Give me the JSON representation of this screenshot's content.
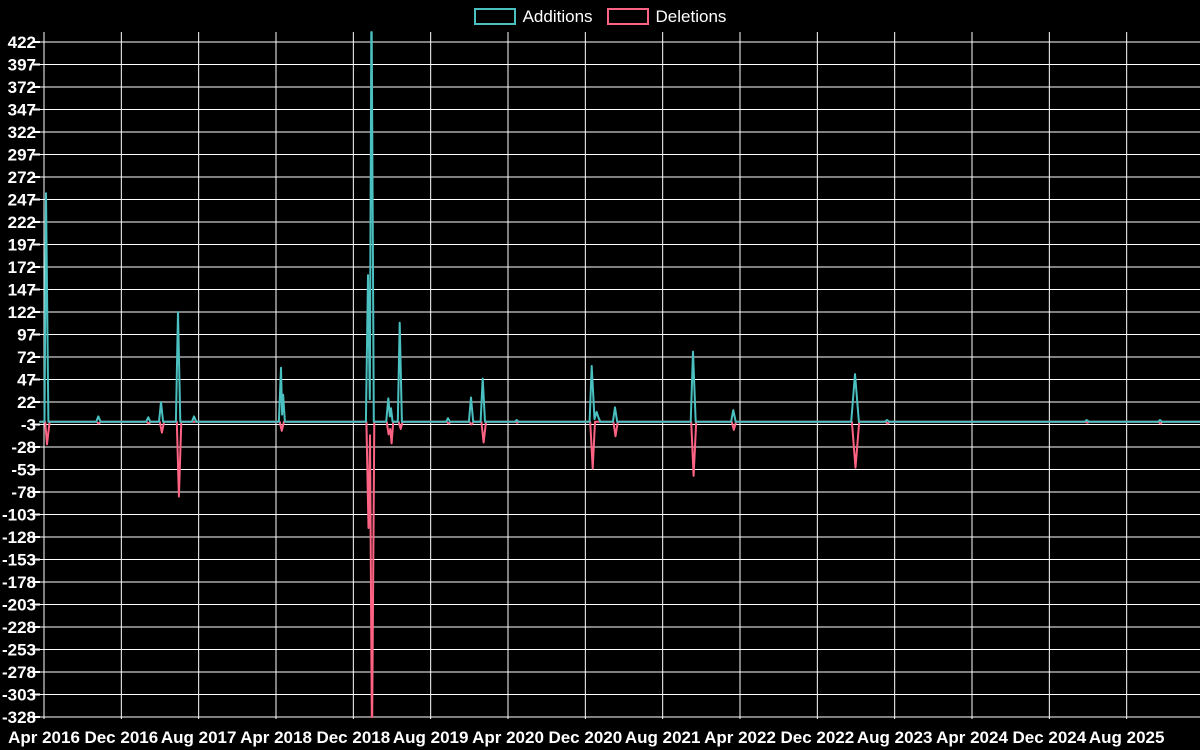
{
  "page": {
    "background_color": "#000000",
    "text_color": "#ffffff",
    "grid_color": "#ffffff"
  },
  "chart_data": {
    "type": "line",
    "title": "",
    "subtitle": "",
    "description": "Weekly code additions and deletions spike chart on black background",
    "grid": true,
    "legend_position": "top-center",
    "x_axis": {
      "label": "",
      "unit": "months since Apr 2016",
      "range_months": [
        -0.41,
        119.6
      ],
      "ticks": [
        {
          "label": "Apr 2016",
          "m": 0
        },
        {
          "label": "Dec 2016",
          "m": 8
        },
        {
          "label": "Aug 2017",
          "m": 16
        },
        {
          "label": "Apr 2018",
          "m": 24
        },
        {
          "label": "Dec 2018",
          "m": 32
        },
        {
          "label": "Aug 2019",
          "m": 40
        },
        {
          "label": "Apr 2020",
          "m": 48
        },
        {
          "label": "Dec 2020",
          "m": 56
        },
        {
          "label": "Aug 2021",
          "m": 64
        },
        {
          "label": "Apr 2022",
          "m": 72
        },
        {
          "label": "Dec 2022",
          "m": 80
        },
        {
          "label": "Aug 2023",
          "m": 88
        },
        {
          "label": "Apr 2024",
          "m": 96
        },
        {
          "label": "Dec 2024",
          "m": 104
        },
        {
          "label": "Aug 2025",
          "m": 112
        }
      ]
    },
    "y_axis": {
      "label": "",
      "min": -328,
      "max": 433,
      "tick_step": 25,
      "ticks": [
        422,
        397,
        372,
        347,
        322,
        297,
        272,
        247,
        222,
        197,
        172,
        147,
        122,
        97,
        72,
        47,
        22,
        -3,
        -28,
        -53,
        -78,
        -103,
        -128,
        -153,
        -178,
        -203,
        -228,
        -253,
        -278,
        -303,
        -328
      ]
    },
    "series": [
      {
        "name": "Additions",
        "color": "#4bc0c0",
        "line_width": 2,
        "points": [
          [
            -0.41,
            0
          ],
          [
            0.05,
            0
          ],
          [
            0.21,
            254
          ],
          [
            0.45,
            0
          ],
          [
            5.4,
            0
          ],
          [
            5.62,
            6
          ],
          [
            5.85,
            0
          ],
          [
            10.55,
            0
          ],
          [
            10.79,
            5
          ],
          [
            11.0,
            0
          ],
          [
            11.9,
            0
          ],
          [
            12.1,
            22
          ],
          [
            12.32,
            0
          ],
          [
            13.64,
            0
          ],
          [
            13.86,
            122
          ],
          [
            14.1,
            0
          ],
          [
            15.3,
            0
          ],
          [
            15.52,
            6
          ],
          [
            15.75,
            0
          ],
          [
            24.3,
            0
          ],
          [
            24.52,
            60
          ],
          [
            24.63,
            8
          ],
          [
            24.73,
            30
          ],
          [
            24.92,
            0
          ],
          [
            33.3,
            0
          ],
          [
            33.52,
            163
          ],
          [
            33.7,
            25
          ],
          [
            33.86,
            433
          ],
          [
            33.9,
            433
          ],
          [
            34.12,
            0
          ],
          [
            35.4,
            0
          ],
          [
            35.62,
            26
          ],
          [
            35.78,
            6
          ],
          [
            35.9,
            15
          ],
          [
            36.06,
            0
          ],
          [
            36.6,
            0
          ],
          [
            36.8,
            110
          ],
          [
            37.02,
            0
          ],
          [
            41.6,
            0
          ],
          [
            41.79,
            4
          ],
          [
            42.0,
            0
          ],
          [
            43.95,
            0
          ],
          [
            44.17,
            27
          ],
          [
            44.4,
            0
          ],
          [
            45.17,
            0
          ],
          [
            45.38,
            48
          ],
          [
            45.62,
            0
          ],
          [
            48.7,
            0
          ],
          [
            48.9,
            2
          ],
          [
            49.1,
            0
          ],
          [
            56.44,
            0
          ],
          [
            56.66,
            62
          ],
          [
            56.95,
            3
          ],
          [
            57.17,
            11
          ],
          [
            57.35,
            5
          ],
          [
            57.55,
            0
          ],
          [
            58.85,
            0
          ],
          [
            59.07,
            16
          ],
          [
            59.3,
            0
          ],
          [
            66.9,
            0
          ],
          [
            67.14,
            78
          ],
          [
            67.42,
            0
          ],
          [
            71.08,
            0
          ],
          [
            71.31,
            13
          ],
          [
            71.55,
            0
          ],
          [
            83.5,
            0
          ],
          [
            83.9,
            53
          ],
          [
            84.3,
            0
          ],
          [
            87.0,
            0
          ],
          [
            87.21,
            2
          ],
          [
            87.45,
            0
          ],
          [
            107.65,
            0
          ],
          [
            107.87,
            2
          ],
          [
            108.1,
            0
          ],
          [
            115.25,
            0
          ],
          [
            115.45,
            2
          ],
          [
            115.65,
            0
          ],
          [
            119.6,
            0
          ]
        ]
      },
      {
        "name": "Deletions",
        "color": "#ff6384",
        "line_width": 2,
        "points": [
          [
            -0.41,
            0
          ],
          [
            0.12,
            0
          ],
          [
            0.31,
            -25
          ],
          [
            0.58,
            0
          ],
          [
            5.45,
            0
          ],
          [
            5.65,
            -2
          ],
          [
            5.9,
            0
          ],
          [
            10.6,
            0
          ],
          [
            10.82,
            -2
          ],
          [
            11.05,
            0
          ],
          [
            11.98,
            0
          ],
          [
            12.2,
            -12
          ],
          [
            12.42,
            0
          ],
          [
            13.74,
            0
          ],
          [
            13.96,
            -83
          ],
          [
            14.2,
            0
          ],
          [
            24.38,
            0
          ],
          [
            24.6,
            -10
          ],
          [
            24.82,
            0
          ],
          [
            33.35,
            0
          ],
          [
            33.57,
            -118
          ],
          [
            33.72,
            -15
          ],
          [
            33.91,
            -328
          ],
          [
            33.95,
            -328
          ],
          [
            34.17,
            0
          ],
          [
            35.45,
            0
          ],
          [
            35.65,
            -14
          ],
          [
            35.82,
            -8
          ],
          [
            35.96,
            -24
          ],
          [
            36.12,
            0
          ],
          [
            36.68,
            0
          ],
          [
            36.9,
            -8
          ],
          [
            37.1,
            0
          ],
          [
            41.65,
            0
          ],
          [
            41.85,
            -2
          ],
          [
            42.07,
            0
          ],
          [
            44.0,
            0
          ],
          [
            44.22,
            -3
          ],
          [
            44.45,
            0
          ],
          [
            45.25,
            0
          ],
          [
            45.48,
            -23
          ],
          [
            45.72,
            0
          ],
          [
            48.75,
            0
          ],
          [
            48.95,
            -1
          ],
          [
            49.15,
            0
          ],
          [
            56.5,
            0
          ],
          [
            56.76,
            -52
          ],
          [
            57.0,
            0
          ],
          [
            58.9,
            0
          ],
          [
            59.12,
            -16
          ],
          [
            59.36,
            0
          ],
          [
            66.95,
            0
          ],
          [
            67.2,
            -60
          ],
          [
            67.47,
            0
          ],
          [
            71.14,
            0
          ],
          [
            71.36,
            -9
          ],
          [
            71.6,
            0
          ],
          [
            83.58,
            0
          ],
          [
            83.95,
            -51
          ],
          [
            84.33,
            0
          ],
          [
            87.05,
            0
          ],
          [
            87.26,
            -2
          ],
          [
            87.5,
            0
          ],
          [
            107.7,
            0
          ],
          [
            107.92,
            -1
          ],
          [
            108.15,
            0
          ],
          [
            115.3,
            0
          ],
          [
            115.5,
            -2
          ],
          [
            115.7,
            0
          ],
          [
            119.6,
            0
          ]
        ]
      }
    ]
  }
}
